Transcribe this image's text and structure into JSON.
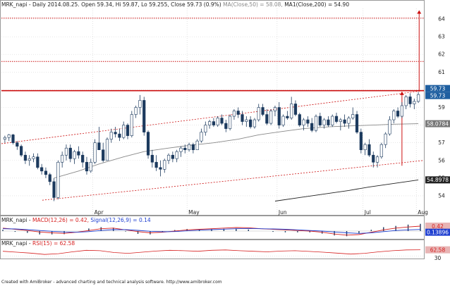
{
  "header": {
    "symbol": "MRK_napi",
    "info": " - Daily 2014.08.25.  Open 59.34, Hi 59.87, Lo 59.255, Close 59.73 (0.9%) ",
    "ma50_label": "MA(Close,50) = 58.08,",
    "ma200_label": " MA1(Close,200) = 54.90"
  },
  "macd_header": {
    "symbol": "MRK_napi - ",
    "macd_label": "MACD(12,26) = 0.42,",
    "signal_label": "Signal(12,26,9) = 0.14"
  },
  "rsi_header": {
    "symbol": "MRK_napi - ",
    "rsi_label": "RSI(15) = 62.58"
  },
  "footer": "Created with AmiBroker - advanced charting and technical analysis software. http://www.amibroker.com",
  "colors": {
    "macd": "#d62020",
    "signal": "#1f3fd0",
    "candle_dark": "#1c3a5e",
    "price_tag": "#1f5fa0",
    "ma50_tag": "#777777",
    "ma200_tag": "#222222",
    "resistance": "#cc1111",
    "ma50": "#888888",
    "ma200": "#222222"
  },
  "chart_data": [
    {
      "type": "candlestick",
      "title": "MRK_napi - Daily 2014.08.25.",
      "ylim": [
        53.2,
        64.6
      ],
      "y_ticks": [
        54,
        55,
        56,
        57,
        58,
        59,
        60,
        61,
        62,
        63,
        64
      ],
      "x_ticks": [
        "Apr",
        "May",
        "Jun",
        "Jul",
        "Aug"
      ],
      "last_price_tags": [
        "59.73",
        "59.73"
      ],
      "ma50_tag": "58.0784",
      "ma200_tag": "54.8978",
      "horizontal_levels": [
        {
          "value": 59.95,
          "style": "solid"
        },
        {
          "value": 61.6,
          "style": "dotted"
        },
        {
          "value": 64.05,
          "style": "dotted"
        }
      ],
      "series": [
        {
          "name": "MA(Close,50)",
          "values": [
            55.0,
            55.4,
            55.8,
            56.2,
            56.5,
            56.7,
            56.85,
            57.0,
            57.2,
            57.45,
            57.65,
            57.8,
            57.9,
            57.95,
            58.0,
            58.05,
            58.08
          ]
        },
        {
          "name": "MA1(Close,200)",
          "values": [
            53.7,
            53.9,
            54.1,
            54.3,
            54.5,
            54.7,
            54.9
          ]
        }
      ],
      "candles": [
        [
          57.2,
          57.4,
          57.0,
          57.3
        ],
        [
          57.3,
          57.5,
          57.1,
          57.45
        ],
        [
          57.45,
          57.5,
          56.9,
          57.0
        ],
        [
          57.0,
          57.1,
          56.6,
          56.8
        ],
        [
          56.8,
          56.9,
          56.2,
          56.3
        ],
        [
          56.3,
          56.5,
          55.8,
          56.0
        ],
        [
          56.0,
          56.3,
          55.7,
          56.1
        ],
        [
          56.1,
          56.4,
          55.9,
          56.2
        ],
        [
          56.2,
          56.4,
          55.5,
          55.6
        ],
        [
          55.6,
          55.8,
          55.2,
          55.4
        ],
        [
          55.4,
          55.6,
          55.0,
          55.2
        ],
        [
          55.2,
          55.3,
          54.6,
          54.8
        ],
        [
          54.8,
          55.0,
          53.7,
          53.9
        ],
        [
          53.9,
          56.0,
          53.8,
          55.9
        ],
        [
          55.9,
          56.5,
          55.6,
          56.3
        ],
        [
          56.3,
          56.9,
          56.0,
          56.7
        ],
        [
          56.7,
          56.9,
          55.9,
          56.1
        ],
        [
          56.1,
          56.6,
          55.8,
          56.5
        ],
        [
          56.5,
          56.8,
          56.1,
          56.3
        ],
        [
          56.3,
          56.5,
          55.6,
          55.9
        ],
        [
          55.9,
          56.2,
          55.2,
          55.4
        ],
        [
          55.4,
          56.1,
          55.3,
          55.9
        ],
        [
          55.9,
          57.2,
          55.8,
          57.0
        ],
        [
          57.0,
          57.9,
          56.6,
          56.6
        ],
        [
          56.6,
          57.0,
          55.9,
          56.0
        ],
        [
          56.0,
          57.3,
          56.0,
          57.2
        ],
        [
          57.2,
          57.8,
          57.0,
          57.6
        ],
        [
          57.6,
          57.9,
          57.3,
          57.5
        ],
        [
          57.5,
          57.8,
          57.1,
          57.3
        ],
        [
          57.3,
          58.2,
          57.2,
          58.0
        ],
        [
          58.0,
          58.1,
          57.2,
          57.4
        ],
        [
          57.4,
          58.8,
          57.3,
          58.6
        ],
        [
          58.6,
          59.1,
          58.4,
          59.0
        ],
        [
          59.0,
          59.7,
          58.6,
          59.4
        ],
        [
          59.4,
          59.6,
          57.4,
          57.6
        ],
        [
          57.6,
          57.7,
          56.1,
          56.3
        ],
        [
          56.3,
          56.6,
          55.6,
          55.9
        ],
        [
          55.9,
          56.3,
          55.4,
          55.6
        ],
        [
          55.6,
          56.0,
          55.1,
          55.5
        ],
        [
          55.5,
          56.1,
          55.3,
          56.0
        ],
        [
          56.0,
          56.4,
          55.8,
          56.3
        ],
        [
          56.3,
          56.5,
          55.9,
          56.1
        ],
        [
          56.1,
          56.6,
          55.9,
          56.5
        ],
        [
          56.5,
          56.8,
          56.2,
          56.7
        ],
        [
          56.7,
          56.9,
          56.4,
          56.6
        ],
        [
          56.6,
          57.0,
          56.5,
          56.9
        ],
        [
          56.9,
          57.0,
          56.4,
          56.6
        ],
        [
          56.6,
          57.2,
          56.6,
          57.1
        ],
        [
          57.1,
          57.8,
          57.0,
          57.6
        ],
        [
          57.6,
          58.2,
          57.4,
          58.0
        ],
        [
          58.0,
          58.3,
          57.8,
          58.2
        ],
        [
          58.2,
          58.4,
          57.9,
          58.0
        ],
        [
          58.0,
          58.5,
          57.9,
          58.4
        ],
        [
          58.4,
          58.6,
          58.0,
          58.1
        ],
        [
          58.1,
          58.3,
          57.6,
          57.8
        ],
        [
          57.8,
          58.6,
          57.7,
          58.5
        ],
        [
          58.5,
          58.9,
          58.3,
          58.8
        ],
        [
          58.8,
          59.0,
          58.4,
          58.6
        ],
        [
          58.6,
          58.8,
          58.0,
          58.2
        ],
        [
          58.2,
          58.5,
          57.9,
          58.3
        ],
        [
          58.3,
          58.5,
          57.8,
          57.9
        ],
        [
          57.9,
          58.4,
          57.8,
          58.3
        ],
        [
          58.3,
          59.2,
          58.2,
          59.0
        ],
        [
          59.0,
          59.2,
          58.5,
          58.6
        ],
        [
          58.6,
          58.9,
          58.0,
          58.1
        ],
        [
          58.1,
          58.9,
          58.0,
          58.8
        ],
        [
          58.8,
          59.1,
          58.5,
          59.0
        ],
        [
          59.0,
          59.3,
          57.8,
          58.0
        ],
        [
          58.0,
          58.6,
          57.9,
          58.5
        ],
        [
          58.5,
          58.8,
          58.3,
          58.4
        ],
        [
          58.4,
          59.6,
          58.3,
          59.2
        ],
        [
          59.2,
          59.4,
          58.5,
          58.6
        ],
        [
          58.6,
          58.7,
          57.9,
          58.0
        ],
        [
          58.0,
          58.4,
          57.7,
          58.3
        ],
        [
          58.3,
          58.5,
          57.9,
          58.1
        ],
        [
          58.1,
          58.4,
          57.6,
          57.7
        ],
        [
          57.7,
          58.6,
          57.6,
          58.5
        ],
        [
          58.5,
          58.7,
          57.9,
          58.0
        ],
        [
          58.0,
          58.4,
          57.8,
          58.3
        ],
        [
          58.3,
          58.5,
          57.9,
          58.0
        ],
        [
          58.0,
          58.6,
          57.9,
          58.5
        ],
        [
          58.5,
          58.7,
          58.1,
          58.2
        ],
        [
          58.2,
          58.4,
          57.7,
          58.3
        ],
        [
          58.3,
          58.6,
          57.9,
          58.1
        ],
        [
          58.1,
          58.5,
          57.8,
          58.4
        ],
        [
          58.4,
          59.0,
          58.3,
          58.6
        ],
        [
          58.6,
          58.8,
          57.5,
          57.6
        ],
        [
          57.6,
          57.8,
          56.4,
          56.6
        ],
        [
          56.6,
          57.0,
          56.3,
          56.9
        ],
        [
          56.9,
          57.2,
          56.2,
          56.3
        ],
        [
          56.3,
          56.5,
          55.6,
          55.9
        ],
        [
          55.9,
          56.3,
          55.6,
          56.2
        ],
        [
          56.2,
          57.0,
          56.1,
          56.9
        ],
        [
          56.9,
          57.6,
          56.7,
          57.5
        ],
        [
          57.5,
          58.5,
          57.4,
          58.3
        ],
        [
          58.3,
          58.9,
          58.1,
          58.8
        ],
        [
          58.8,
          59.0,
          58.4,
          58.5
        ],
        [
          58.5,
          59.3,
          58.4,
          59.1
        ],
        [
          59.1,
          59.7,
          58.9,
          59.6
        ],
        [
          59.6,
          59.8,
          59.0,
          59.2
        ],
        [
          59.2,
          59.5,
          58.9,
          59.34
        ],
        [
          59.34,
          59.87,
          59.255,
          59.73
        ]
      ]
    },
    {
      "type": "line",
      "title": "MACD(12,26) = 0.42, Signal(12,26,9) = 0.14",
      "ylim": [
        -0.6,
        0.6
      ],
      "y_ticks": [
        "0.42",
        "0.13896"
      ],
      "series": [
        {
          "name": "MACD(12,26)",
          "values": [
            0.25,
            0.15,
            0.05,
            -0.08,
            -0.15,
            -0.2,
            -0.1,
            0.05,
            0.2,
            0.25,
            0.1,
            -0.05,
            -0.15,
            -0.1,
            0.0,
            0.1,
            0.15,
            0.2,
            0.25,
            0.3,
            0.28,
            0.2,
            0.15,
            0.1,
            0.05,
            0.0,
            -0.1,
            -0.25,
            -0.35,
            -0.3,
            -0.1,
            0.1,
            0.25,
            0.35,
            0.42
          ]
        },
        {
          "name": "Signal(12,26,9)",
          "values": [
            0.2,
            0.18,
            0.12,
            0.05,
            -0.02,
            -0.08,
            -0.1,
            -0.05,
            0.05,
            0.12,
            0.12,
            0.06,
            -0.02,
            -0.06,
            -0.04,
            0.02,
            0.08,
            0.12,
            0.16,
            0.2,
            0.22,
            0.2,
            0.18,
            0.15,
            0.1,
            0.05,
            0.0,
            -0.08,
            -0.15,
            -0.2,
            -0.15,
            -0.05,
            0.05,
            0.1,
            0.14
          ]
        }
      ]
    },
    {
      "type": "line",
      "title": "RSI(15) = 62.58",
      "ylim": [
        20,
        80
      ],
      "y_ticks": [
        "62.58",
        "30"
      ],
      "series": [
        {
          "name": "RSI(15)",
          "values": [
            55,
            50,
            45,
            38,
            42,
            52,
            60,
            58,
            48,
            44,
            50,
            56,
            60,
            58,
            55,
            60,
            62,
            58,
            55,
            52,
            56,
            58,
            54,
            50,
            45,
            40,
            44,
            52,
            58,
            62,
            62.58
          ]
        }
      ]
    }
  ]
}
